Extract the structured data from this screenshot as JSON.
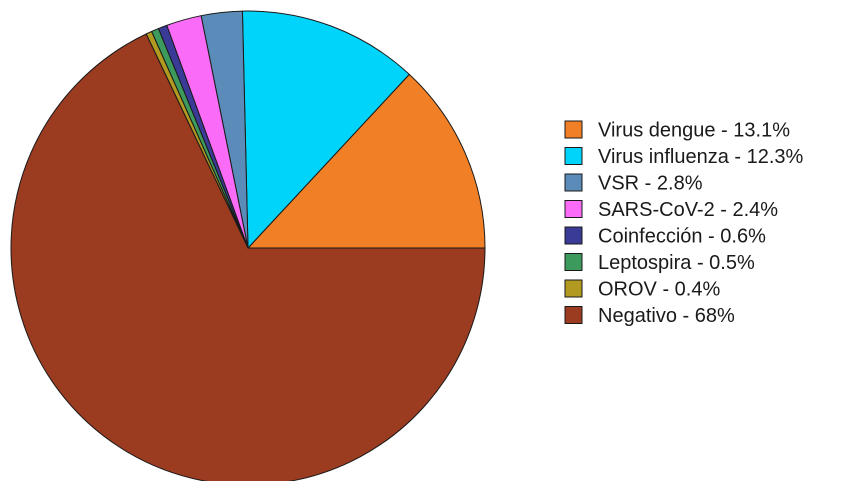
{
  "chart_data": {
    "type": "pie",
    "title": "",
    "start": "3 o'clock",
    "direction": "counterclockwise",
    "legend_position": "right",
    "slices": [
      {
        "label": "Virus dengue - 13.1%",
        "value": 13.1,
        "color": "#f07f26"
      },
      {
        "label": "Virus influenza - 12.3%",
        "value": 12.3,
        "color": "#00d4fa"
      },
      {
        "label": "VSR - 2.8%",
        "value": 2.8,
        "color": "#5b8bb8"
      },
      {
        "label": "SARS-CoV-2 - 2.4%",
        "value": 2.4,
        "color": "#fa6bf7"
      },
      {
        "label": "Coinfección - 0.6%",
        "value": 0.6,
        "color": "#3a3a97"
      },
      {
        "label": "Leptospira - 0.5%",
        "value": 0.5,
        "color": "#3c9a5c"
      },
      {
        "label": "OROV - 0.4%",
        "value": 0.4,
        "color": "#b29a21"
      },
      {
        "label": "Negativo - 68%",
        "value": 68,
        "color": "#9b3b20"
      }
    ]
  }
}
